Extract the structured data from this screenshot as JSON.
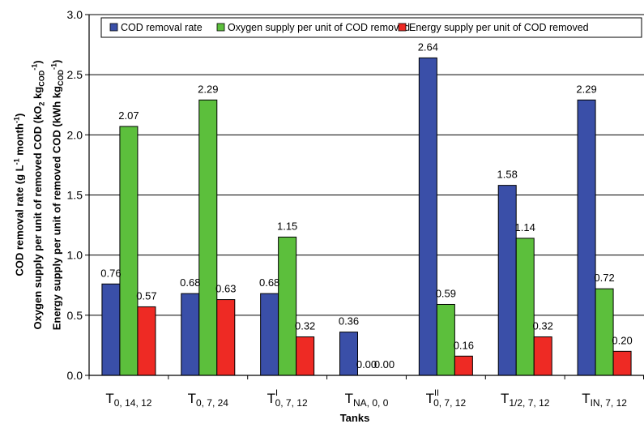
{
  "chart_data": {
    "type": "bar",
    "categories": [
      {
        "base": "T",
        "sup": "",
        "sub": "0, 14, 12"
      },
      {
        "base": "T",
        "sup": "",
        "sub": "0, 7, 24"
      },
      {
        "base": "T",
        "sup": "I",
        "sub": "0, 7, 12"
      },
      {
        "base": "T",
        "sup": "",
        "sub": "NA, 0, 0"
      },
      {
        "base": "T",
        "sup": "II",
        "sub": "0, 7, 12"
      },
      {
        "base": "T",
        "sup": "",
        "sub": "1/2, 7, 12"
      },
      {
        "base": "T",
        "sup": "",
        "sub": "IN, 7, 12"
      }
    ],
    "series": [
      {
        "name": "COD removal rate",
        "color": "#3a4fa8",
        "values": [
          0.76,
          0.68,
          0.68,
          0.36,
          2.64,
          1.58,
          2.29
        ],
        "labels": [
          "0.76",
          "0.68",
          "0.68",
          "0.36",
          "2.64",
          "1.58",
          "2.29"
        ]
      },
      {
        "name": "Oxygen supply per unit of COD removed",
        "color": "#5cbf3c",
        "values": [
          2.07,
          2.29,
          1.15,
          0,
          0.59,
          1.14,
          0.72
        ],
        "labels": [
          "2.07",
          "2.29",
          "1.15",
          "0.00",
          "0.59",
          "1.14",
          "0.72"
        ]
      },
      {
        "name": "Energy supply per unit of COD removed",
        "color": "#ee2a24",
        "values": [
          0.57,
          0.63,
          0.32,
          0,
          0.16,
          0.32,
          0.2
        ],
        "labels": [
          "0.57",
          "0.63",
          "0.32",
          "0.00",
          "0.16",
          "0.32",
          "0.20"
        ]
      }
    ],
    "ylim": [
      0,
      3.0
    ],
    "yticks": [
      "0.0",
      "0.5",
      "1.0",
      "1.5",
      "2.0",
      "2.5",
      "3.0"
    ],
    "xlabel": "Tanks",
    "ylabel_lines": [
      {
        "text": "COD removal rate (g L",
        "sup": "-1",
        "tail": " month",
        "sup2": "-1",
        "end": ")"
      },
      {
        "text": "Oxygen supply per unit of removed COD (kO",
        "sub": "2",
        "tail": " kg",
        "sub2": "COD",
        "sup2": "-1",
        "end": ")"
      },
      {
        "text": "Energy supply per unit of removed COD (kWh kg",
        "sub": "COD",
        "sup": "-1",
        "end": ")"
      }
    ],
    "grid": true,
    "legend_position": "top"
  }
}
